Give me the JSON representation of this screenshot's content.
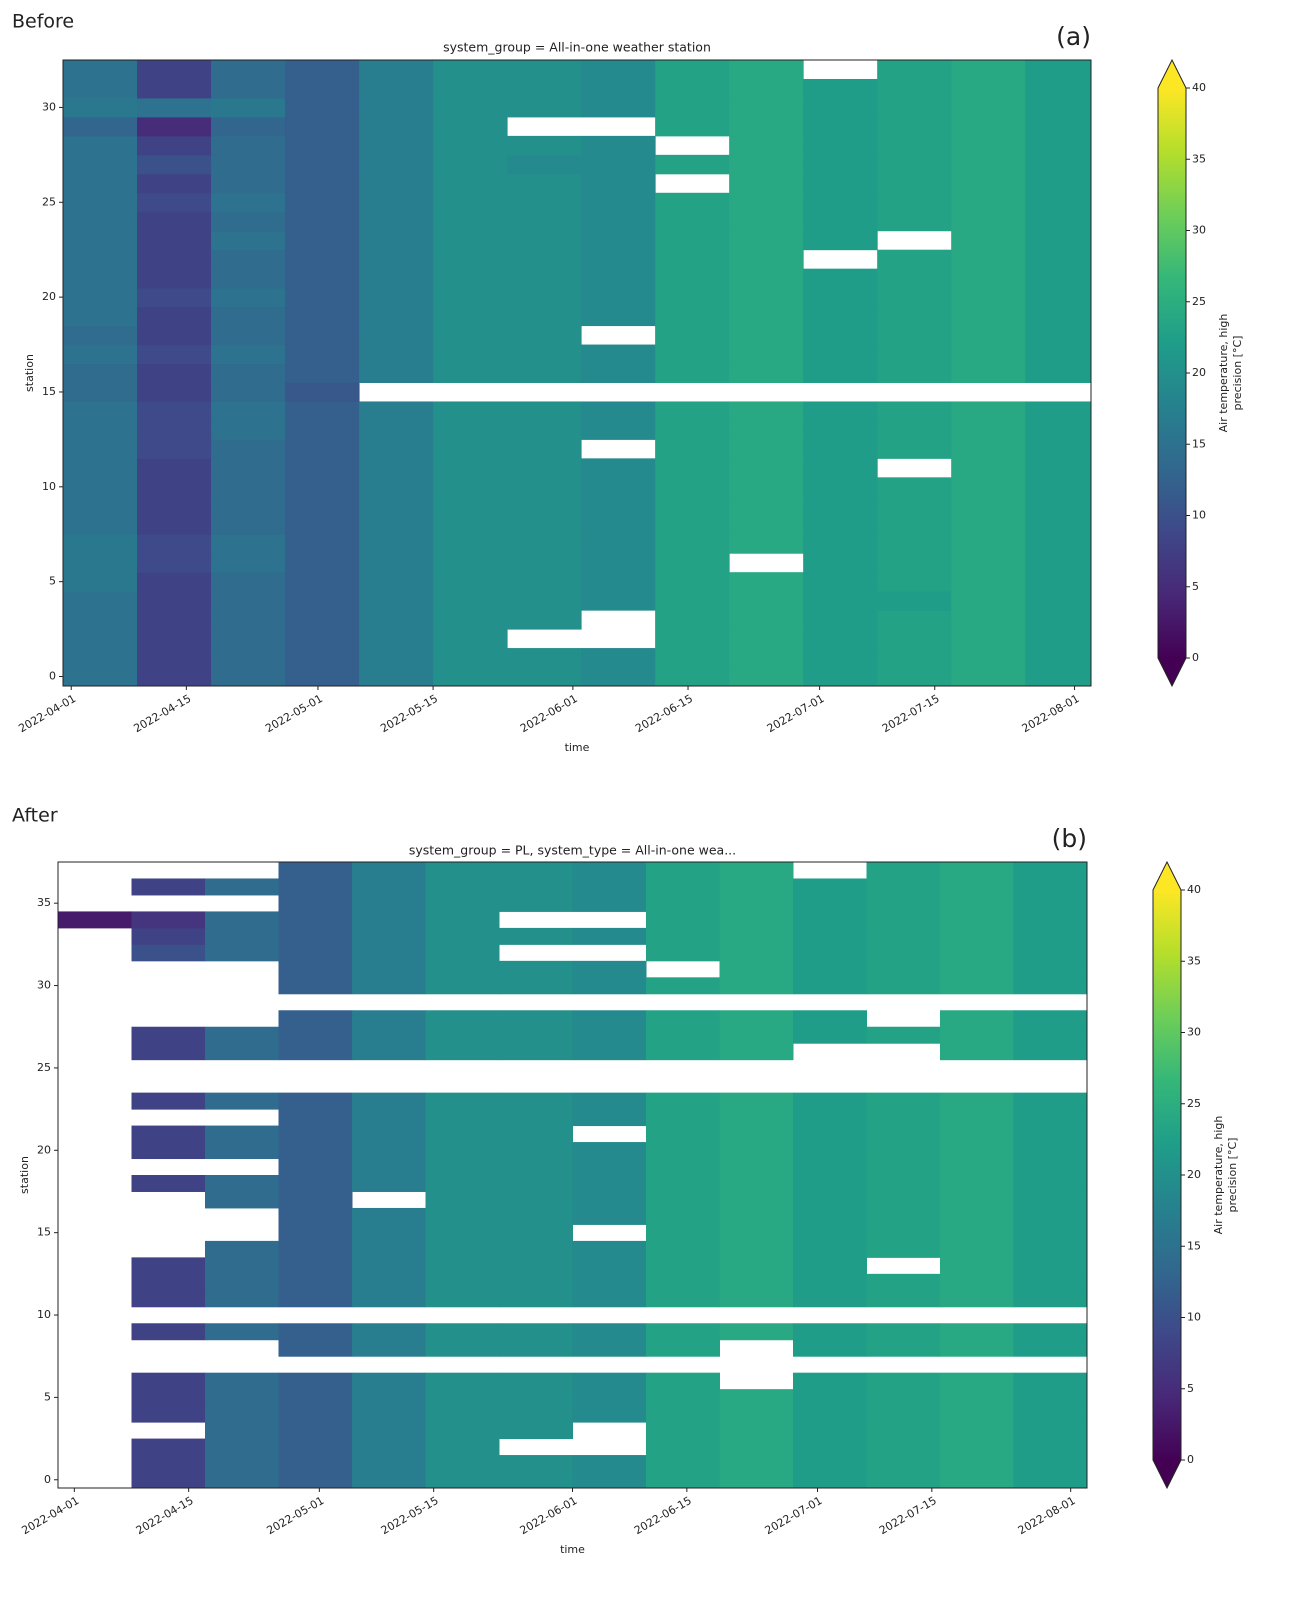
{
  "chart_data": [
    {
      "type": "heatmap",
      "label": "Before",
      "panel": "(a)",
      "title": "system_group = All-in-one weather station",
      "xlabel": "time",
      "ylabel": "station",
      "x": [
        "2022-03-31",
        "2022-04-09",
        "2022-04-18",
        "2022-04-27",
        "2022-05-06",
        "2022-05-15",
        "2022-05-24",
        "2022-06-02",
        "2022-06-11",
        "2022-06-20",
        "2022-06-29",
        "2022-07-08",
        "2022-07-17",
        "2022-07-26"
      ],
      "xlim": [
        "2022-03-31",
        "2022-08-03"
      ],
      "xticks": [
        "2022-04-01",
        "2022-04-15",
        "2022-05-01",
        "2022-05-15",
        "2022-06-01",
        "2022-06-15",
        "2022-07-01",
        "2022-07-15",
        "2022-08-01"
      ],
      "y": [
        0,
        1,
        2,
        3,
        4,
        5,
        6,
        7,
        8,
        9,
        10,
        11,
        12,
        13,
        14,
        15,
        16,
        17,
        18,
        19,
        20,
        21,
        22,
        23,
        24,
        25,
        26,
        27,
        28,
        29,
        30,
        31,
        32
      ],
      "ylim": [
        -0.5,
        32.5
      ],
      "yticks": [
        0,
        5,
        10,
        15,
        20,
        25,
        30
      ],
      "z": [
        [
          15,
          8,
          14,
          12,
          17,
          20,
          20,
          19,
          23,
          24,
          22,
          23,
          24,
          22
        ],
        [
          15,
          8,
          14,
          12,
          17,
          20,
          20,
          19,
          23,
          24,
          22,
          23,
          24,
          22
        ],
        [
          15,
          8,
          14,
          12,
          17,
          20,
          null,
          null,
          23,
          24,
          22,
          23,
          24,
          22
        ],
        [
          15,
          8,
          14,
          12,
          17,
          20,
          20,
          null,
          23,
          24,
          22,
          23,
          24,
          22
        ],
        [
          15,
          8,
          14,
          12,
          17,
          20,
          20,
          19,
          23,
          24,
          22,
          22,
          24,
          22
        ],
        [
          16,
          8,
          14,
          12,
          17,
          20,
          20,
          19,
          23,
          24,
          22,
          23,
          24,
          22
        ],
        [
          16,
          9,
          15,
          12,
          17,
          20,
          20,
          19,
          23,
          null,
          22,
          23,
          24,
          22
        ],
        [
          16,
          9,
          15,
          12,
          17,
          20,
          20,
          19,
          23,
          24,
          22,
          23,
          24,
          22
        ],
        [
          15,
          8,
          14,
          12,
          17,
          20,
          20,
          19,
          23,
          24,
          22,
          23,
          24,
          22
        ],
        [
          15,
          8,
          14,
          12,
          17,
          20,
          20,
          19,
          23,
          24,
          22,
          23,
          24,
          22
        ],
        [
          15,
          8,
          14,
          12,
          17,
          20,
          20,
          19,
          23,
          24,
          22,
          23,
          24,
          22
        ],
        [
          15,
          8,
          14,
          12,
          17,
          20,
          20,
          19,
          23,
          24,
          22,
          null,
          24,
          22
        ],
        [
          15,
          9,
          14,
          12,
          17,
          20,
          20,
          null,
          23,
          24,
          22,
          23,
          24,
          22
        ],
        [
          15,
          9,
          15,
          12,
          17,
          20,
          20,
          19,
          23,
          24,
          22,
          23,
          24,
          22
        ],
        [
          15,
          9,
          15,
          12,
          17,
          20,
          20,
          19,
          23,
          24,
          22,
          23,
          24,
          22
        ],
        [
          14,
          8,
          14,
          11,
          null,
          null,
          null,
          null,
          null,
          null,
          null,
          null,
          null,
          null
        ],
        [
          14,
          8,
          14,
          12,
          17,
          20,
          20,
          19,
          23,
          24,
          22,
          23,
          24,
          22
        ],
        [
          15,
          9,
          15,
          12,
          17,
          20,
          20,
          19,
          23,
          24,
          22,
          23,
          24,
          22
        ],
        [
          14,
          8,
          14,
          12,
          17,
          20,
          20,
          null,
          23,
          24,
          22,
          23,
          24,
          22
        ],
        [
          15,
          8,
          14,
          12,
          17,
          20,
          20,
          19,
          23,
          24,
          22,
          23,
          24,
          22
        ],
        [
          15,
          9,
          15,
          12,
          17,
          20,
          20,
          19,
          23,
          24,
          22,
          23,
          24,
          22
        ],
        [
          15,
          8,
          14,
          12,
          17,
          20,
          20,
          19,
          23,
          24,
          22,
          23,
          24,
          22
        ],
        [
          15,
          8,
          14,
          12,
          17,
          20,
          20,
          19,
          23,
          24,
          null,
          23,
          24,
          22
        ],
        [
          15,
          8,
          15,
          12,
          17,
          20,
          20,
          19,
          23,
          24,
          22,
          null,
          24,
          22
        ],
        [
          15,
          8,
          14,
          12,
          17,
          20,
          20,
          19,
          23,
          24,
          22,
          23,
          24,
          22
        ],
        [
          15,
          9,
          15,
          12,
          17,
          20,
          20,
          19,
          23,
          24,
          22,
          23,
          24,
          22
        ],
        [
          15,
          8,
          14,
          12,
          17,
          20,
          20,
          19,
          null,
          24,
          22,
          23,
          24,
          22
        ],
        [
          15,
          10,
          14,
          12,
          17,
          20,
          19,
          19,
          23,
          24,
          22,
          23,
          24,
          22
        ],
        [
          15,
          8,
          14,
          12,
          17,
          20,
          20,
          19,
          null,
          24,
          22,
          23,
          24,
          22
        ],
        [
          13,
          5,
          13,
          12,
          17,
          20,
          null,
          null,
          23,
          24,
          22,
          23,
          24,
          22
        ],
        [
          16,
          15,
          16,
          12,
          17,
          20,
          20,
          19,
          23,
          24,
          22,
          23,
          24,
          22
        ],
        [
          15,
          8,
          14,
          12,
          17,
          20,
          20,
          19,
          23,
          24,
          22,
          23,
          24,
          22
        ],
        [
          15,
          8,
          14,
          12,
          17,
          20,
          20,
          19,
          23,
          24,
          null,
          23,
          24,
          22
        ]
      ],
      "colormap": [
        "#440154",
        "#482878",
        "#3e4989",
        "#31688e",
        "#26828e",
        "#1f9e89",
        "#35b779",
        "#6ece58",
        "#b5de2b",
        "#fde725"
      ],
      "clim": [
        0,
        40
      ],
      "cticks": [
        0,
        5,
        10,
        15,
        20,
        25,
        30,
        35,
        40
      ],
      "extend": "both",
      "colorbar_label": [
        "Air temperature, high",
        "precision [°C]"
      ]
    },
    {
      "type": "heatmap",
      "label": "After",
      "panel": "(b)",
      "title": "system_group = PL, system_type = All-in-one wea...",
      "xlabel": "time",
      "ylabel": "station",
      "x": [
        "2022-03-30",
        "2022-04-08",
        "2022-04-17",
        "2022-04-26",
        "2022-05-05",
        "2022-05-14",
        "2022-05-23",
        "2022-06-01",
        "2022-06-10",
        "2022-06-19",
        "2022-06-28",
        "2022-07-07",
        "2022-07-16",
        "2022-07-25"
      ],
      "xlim": [
        "2022-03-30",
        "2022-08-03"
      ],
      "xticks": [
        "2022-04-01",
        "2022-04-15",
        "2022-05-01",
        "2022-05-15",
        "2022-06-01",
        "2022-06-15",
        "2022-07-01",
        "2022-07-15",
        "2022-08-01"
      ],
      "y": [
        0,
        1,
        2,
        3,
        4,
        5,
        6,
        7,
        8,
        9,
        10,
        11,
        12,
        13,
        14,
        15,
        16,
        17,
        18,
        19,
        20,
        21,
        22,
        23,
        24,
        25,
        26,
        27,
        28,
        29,
        30,
        31,
        32,
        33,
        34,
        35,
        36,
        37
      ],
      "ylim": [
        -0.5,
        37.5
      ],
      "yticks": [
        0,
        5,
        10,
        15,
        20,
        25,
        30,
        35
      ],
      "z": [
        [
          null,
          8,
          14,
          12,
          17,
          20,
          20,
          19,
          23,
          24,
          22,
          23,
          24,
          22
        ],
        [
          null,
          8,
          14,
          12,
          17,
          20,
          20,
          19,
          23,
          24,
          22,
          23,
          24,
          22
        ],
        [
          null,
          8,
          14,
          12,
          17,
          20,
          null,
          null,
          23,
          24,
          22,
          23,
          24,
          22
        ],
        [
          null,
          null,
          14,
          12,
          17,
          20,
          20,
          null,
          23,
          24,
          22,
          23,
          24,
          22
        ],
        [
          null,
          8,
          14,
          12,
          17,
          20,
          20,
          19,
          23,
          24,
          22,
          23,
          24,
          22
        ],
        [
          null,
          8,
          14,
          12,
          17,
          20,
          20,
          19,
          23,
          24,
          22,
          23,
          24,
          22
        ],
        [
          null,
          8,
          14,
          12,
          17,
          20,
          20,
          19,
          23,
          null,
          22,
          23,
          24,
          22
        ],
        [
          null,
          null,
          null,
          null,
          null,
          null,
          null,
          null,
          null,
          null,
          null,
          null,
          null,
          null
        ],
        [
          null,
          null,
          null,
          12,
          17,
          20,
          20,
          19,
          23,
          null,
          22,
          23,
          24,
          22
        ],
        [
          null,
          8,
          14,
          12,
          17,
          20,
          20,
          19,
          23,
          24,
          22,
          23,
          24,
          22
        ],
        [
          null,
          null,
          null,
          null,
          null,
          null,
          null,
          null,
          null,
          null,
          null,
          null,
          null,
          null
        ],
        [
          null,
          8,
          14,
          12,
          17,
          20,
          20,
          19,
          23,
          24,
          22,
          23,
          24,
          22
        ],
        [
          null,
          8,
          14,
          12,
          17,
          20,
          20,
          19,
          23,
          24,
          22,
          23,
          24,
          22
        ],
        [
          null,
          8,
          14,
          12,
          17,
          20,
          20,
          19,
          23,
          24,
          22,
          null,
          24,
          22
        ],
        [
          null,
          null,
          14,
          12,
          17,
          20,
          20,
          19,
          23,
          24,
          22,
          23,
          24,
          22
        ],
        [
          null,
          null,
          null,
          12,
          17,
          20,
          20,
          null,
          23,
          24,
          22,
          23,
          24,
          22
        ],
        [
          null,
          null,
          null,
          12,
          17,
          20,
          20,
          19,
          23,
          24,
          22,
          23,
          24,
          22
        ],
        [
          null,
          null,
          14,
          12,
          null,
          20,
          20,
          19,
          23,
          24,
          22,
          23,
          24,
          22
        ],
        [
          null,
          8,
          14,
          12,
          17,
          20,
          20,
          19,
          23,
          24,
          22,
          23,
          24,
          22
        ],
        [
          null,
          null,
          null,
          12,
          17,
          20,
          20,
          19,
          23,
          24,
          22,
          23,
          24,
          22
        ],
        [
          null,
          8,
          14,
          12,
          17,
          20,
          20,
          19,
          23,
          24,
          22,
          23,
          24,
          22
        ],
        [
          null,
          8,
          14,
          12,
          17,
          20,
          20,
          null,
          23,
          24,
          22,
          23,
          24,
          22
        ],
        [
          null,
          null,
          null,
          12,
          17,
          20,
          20,
          19,
          23,
          24,
          22,
          23,
          24,
          22
        ],
        [
          null,
          8,
          14,
          12,
          17,
          20,
          20,
          19,
          23,
          24,
          22,
          23,
          24,
          22
        ],
        [
          null,
          null,
          null,
          null,
          null,
          null,
          null,
          null,
          null,
          null,
          null,
          null,
          null,
          null
        ],
        [
          null,
          null,
          null,
          null,
          null,
          null,
          null,
          null,
          null,
          null,
          null,
          null,
          null,
          null
        ],
        [
          null,
          8,
          14,
          12,
          17,
          20,
          20,
          19,
          23,
          24,
          null,
          null,
          24,
          22
        ],
        [
          null,
          8,
          14,
          12,
          17,
          20,
          20,
          19,
          23,
          24,
          22,
          23,
          24,
          22
        ],
        [
          null,
          null,
          null,
          12,
          17,
          20,
          20,
          19,
          23,
          24,
          22,
          null,
          24,
          22
        ],
        [
          null,
          null,
          null,
          null,
          null,
          null,
          null,
          null,
          null,
          null,
          null,
          null,
          null,
          null
        ],
        [
          null,
          null,
          null,
          12,
          17,
          20,
          20,
          19,
          23,
          24,
          22,
          23,
          24,
          22
        ],
        [
          null,
          null,
          null,
          12,
          17,
          20,
          20,
          19,
          null,
          24,
          22,
          23,
          24,
          22
        ],
        [
          null,
          10,
          14,
          12,
          17,
          20,
          null,
          null,
          23,
          24,
          22,
          23,
          24,
          22
        ],
        [
          null,
          8,
          14,
          12,
          17,
          20,
          20,
          19,
          23,
          24,
          22,
          23,
          24,
          22
        ],
        [
          3,
          6,
          14,
          12,
          17,
          20,
          null,
          null,
          23,
          24,
          22,
          23,
          24,
          22
        ],
        [
          null,
          null,
          null,
          12,
          17,
          20,
          20,
          19,
          23,
          24,
          22,
          23,
          24,
          22
        ],
        [
          null,
          8,
          14,
          12,
          17,
          20,
          20,
          19,
          23,
          24,
          22,
          23,
          24,
          22
        ],
        [
          null,
          null,
          null,
          12,
          17,
          20,
          20,
          19,
          23,
          24,
          null,
          23,
          24,
          22
        ]
      ],
      "colormap": [
        "#440154",
        "#482878",
        "#3e4989",
        "#31688e",
        "#26828e",
        "#1f9e89",
        "#35b779",
        "#6ece58",
        "#b5de2b",
        "#fde725"
      ],
      "clim": [
        0,
        40
      ],
      "cticks": [
        0,
        5,
        10,
        15,
        20,
        25,
        30,
        35,
        40
      ],
      "extend": "both",
      "colorbar_label": [
        "Air temperature, high",
        "precision [°C]"
      ]
    }
  ]
}
